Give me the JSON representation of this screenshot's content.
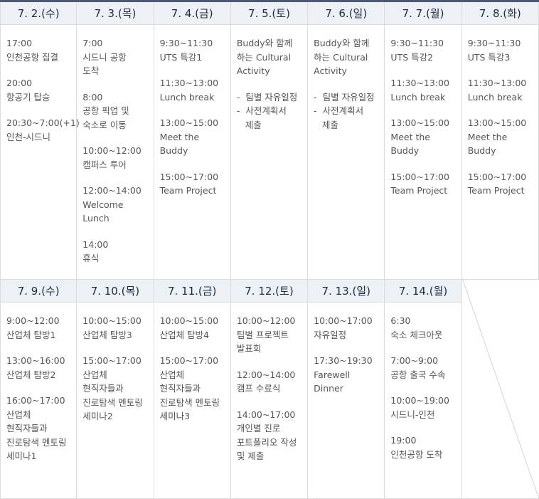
{
  "rows": [
    {
      "days": [
        {
          "date": "7. 2.(수)",
          "blocks": [
            [
              "17:00",
              "인천공항 집결"
            ],
            [
              "20:00",
              "항공기 탑승"
            ],
            [
              "20:30~7:00(+1)",
              "인천-시드니"
            ]
          ]
        },
        {
          "date": "7. 3.(목)",
          "blocks": [
            [
              "7:00",
              "시드니 공항",
              "도착"
            ],
            [
              "8:00",
              "공항 픽업 및",
              "숙소로 이동"
            ],
            [
              "10:00~12:00",
              "캠퍼스 투어"
            ],
            [
              "12:00~14:00",
              "Welcome",
              "Lunch"
            ],
            [
              "14:00",
              "휴식"
            ]
          ]
        },
        {
          "date": "7. 4.(금)",
          "blocks": [
            [
              "9:30~11:30",
              "UTS 특강1"
            ],
            [
              "11:30~13:00",
              "Lunch break"
            ],
            [
              "13:00~15:00",
              "Meet the",
              "Buddy"
            ],
            [
              "15:00~17:00",
              "Team Project"
            ]
          ]
        },
        {
          "date": "7. 5.(토)",
          "blocks": [
            [
              "Buddy와 함께",
              "하는 Cultural",
              "Activity"
            ],
            [
              "-  팀별 자유일정",
              "-  사전계획서",
              "   제출"
            ]
          ]
        },
        {
          "date": "7. 6.(일)",
          "blocks": [
            [
              "Buddy와 함께",
              "하는 Cultural",
              "Activity"
            ],
            [
              "-  팀별 자유일정",
              "-  사전계획서",
              "   제출"
            ]
          ]
        },
        {
          "date": "7. 7.(월)",
          "blocks": [
            [
              "9:30~11:30",
              "UTS 특강2"
            ],
            [
              "11:30~13:00",
              "Lunch break"
            ],
            [
              "13:00~15:00",
              "Meet the",
              "Buddy"
            ],
            [
              "15:00~17:00",
              "Team Project"
            ]
          ]
        },
        {
          "date": "7. 8.(화)",
          "blocks": [
            [
              "9:30~11:30",
              "UTS 특강3"
            ],
            [
              "11:30~13:00",
              "Lunch break"
            ],
            [
              "13:00~15:00",
              "Meet the",
              "Buddy"
            ],
            [
              "15:00~17:00",
              "Team Project"
            ]
          ]
        }
      ]
    },
    {
      "days": [
        {
          "date": "7. 9.(수)",
          "blocks": [
            [
              "9:00~12:00",
              "산업체 탐방1"
            ],
            [
              "13:00~16:00",
              "산업체 탐방2"
            ],
            [
              "16:00~17:00",
              "산업체",
              "현직자들과",
              "진로탐색 멘토링",
              "세미나1"
            ]
          ]
        },
        {
          "date": "7. 10.(목)",
          "blocks": [
            [
              "10:00~15:00",
              "산업체 탐방3"
            ],
            [
              "15:00~17:00",
              "산업체",
              "현직자들과",
              "진로탐색 멘토링",
              "세미나2"
            ]
          ]
        },
        {
          "date": "7. 11.(금)",
          "blocks": [
            [
              "10:00~15:00",
              "산업체 탐방4"
            ],
            [
              "15:00~17:00",
              "산업체",
              "현직자들과",
              "진로탐색 멘토링",
              "세미나3"
            ]
          ]
        },
        {
          "date": "7. 12.(토)",
          "blocks": [
            [
              "10:00~12:00",
              "팀별 프로젝트",
              "발표회"
            ],
            [
              "12:00~14:00",
              "캠프 수료식"
            ],
            [
              "14:00~17:00",
              "개인별 진로",
              "포트폴리오 작성",
              "및 제출"
            ]
          ]
        },
        {
          "date": "7. 13.(일)",
          "blocks": [
            [
              "10:00~17:00",
              "자유일정"
            ],
            [
              "17:30~19:30",
              "Farewell",
              "Dinner"
            ]
          ]
        },
        {
          "date": "7. 14.(월)",
          "blocks": [
            [
              "6:30",
              "숙소 체크아웃"
            ],
            [
              "7:00~9:00",
              "공항 출국 수속"
            ],
            [
              "10:00~19:00",
              "시드니-인천"
            ],
            [
              "19:00",
              "인천공항 도착"
            ]
          ]
        }
      ]
    }
  ]
}
